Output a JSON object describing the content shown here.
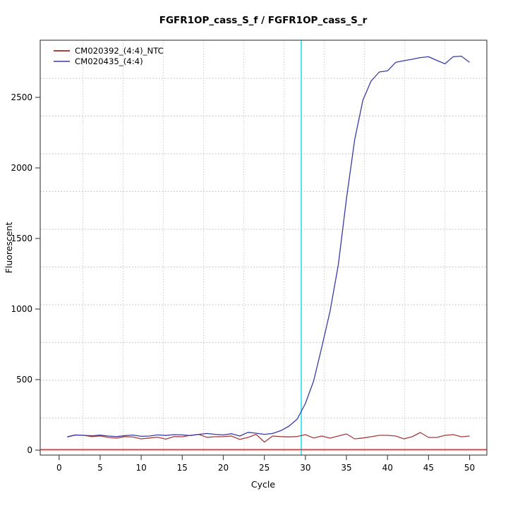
{
  "title": "FGFR1OP_cass_S_f / FGFR1OP_cass_S_r",
  "legend": {
    "items": [
      {
        "label": "CM020392_(4:4)_NTC",
        "color": "#a84040"
      },
      {
        "label": "CM020435_(4:4)",
        "color": "#6a6ac0"
      }
    ]
  },
  "chart_data": {
    "type": "line",
    "title": "FGFR1OP_cass_S_f / FGFR1OP_cass_S_r",
    "xlabel": "Cycle",
    "ylabel": "Fluorescent",
    "xlim": [
      -2.3,
      52.1
    ],
    "ylim": [
      -35,
      2905
    ],
    "x_ticks": [
      0,
      5,
      10,
      15,
      20,
      25,
      30,
      35,
      40,
      45,
      50
    ],
    "y_ticks": [
      0,
      500,
      1000,
      1500,
      2000,
      2500
    ],
    "grid": "on",
    "legend_position": "top-left",
    "x": [
      1,
      2,
      3,
      4,
      5,
      6,
      7,
      8,
      9,
      10,
      11,
      12,
      13,
      14,
      15,
      16,
      17,
      18,
      19,
      20,
      21,
      22,
      23,
      24,
      25,
      26,
      27,
      28,
      29,
      30,
      31,
      32,
      33,
      34,
      35,
      36,
      37,
      38,
      39,
      40,
      41,
      42,
      43,
      44,
      45,
      46,
      47,
      48,
      49,
      50
    ],
    "series": [
      {
        "name": "CM020392_(4:4)_NTC",
        "color": "#a43c3c",
        "values": [
          93,
          107,
          105,
          96,
          101,
          90,
          85,
          96,
          93,
          80,
          86,
          92,
          78,
          96,
          95,
          105,
          112,
          91,
          95,
          96,
          100,
          76,
          90,
          112,
          57,
          100,
          96,
          94,
          96,
          110,
          86,
          100,
          85,
          100,
          115,
          80,
          86,
          95,
          105,
          105,
          100,
          80,
          95,
          125,
          90,
          90,
          105,
          110,
          95,
          100
        ]
      },
      {
        "name": "CM020435_(4:4)",
        "color": "#3b3ba6",
        "values": [
          95,
          108,
          105,
          102,
          107,
          100,
          96,
          103,
          107,
          98,
          100,
          108,
          104,
          110,
          108,
          103,
          112,
          118,
          112,
          108,
          116,
          100,
          126,
          120,
          112,
          118,
          138,
          170,
          220,
          330,
          490,
          730,
          985,
          1310,
          1780,
          2200,
          2480,
          2615,
          2680,
          2688,
          2748,
          2760,
          2770,
          2782,
          2788,
          2762,
          2738,
          2788,
          2792,
          2748
        ]
      }
    ],
    "threshold_line": {
      "y": 3,
      "color": "#d84a4a"
    },
    "threshold_cycle_line": {
      "x": 29.5,
      "color": "#00e1ec"
    },
    "gridlines": {
      "x": [
        2.9,
        7.8,
        12.7,
        17.6,
        22.5,
        27.4,
        32.3,
        37.2,
        42.1,
        47.0
      ],
      "y": [
        228,
        495,
        763,
        1030,
        1298,
        1565,
        1833,
        2100,
        2368,
        2635
      ]
    },
    "gridline_color": "#b9b9b9",
    "axis_color": "#4a4a4a"
  }
}
